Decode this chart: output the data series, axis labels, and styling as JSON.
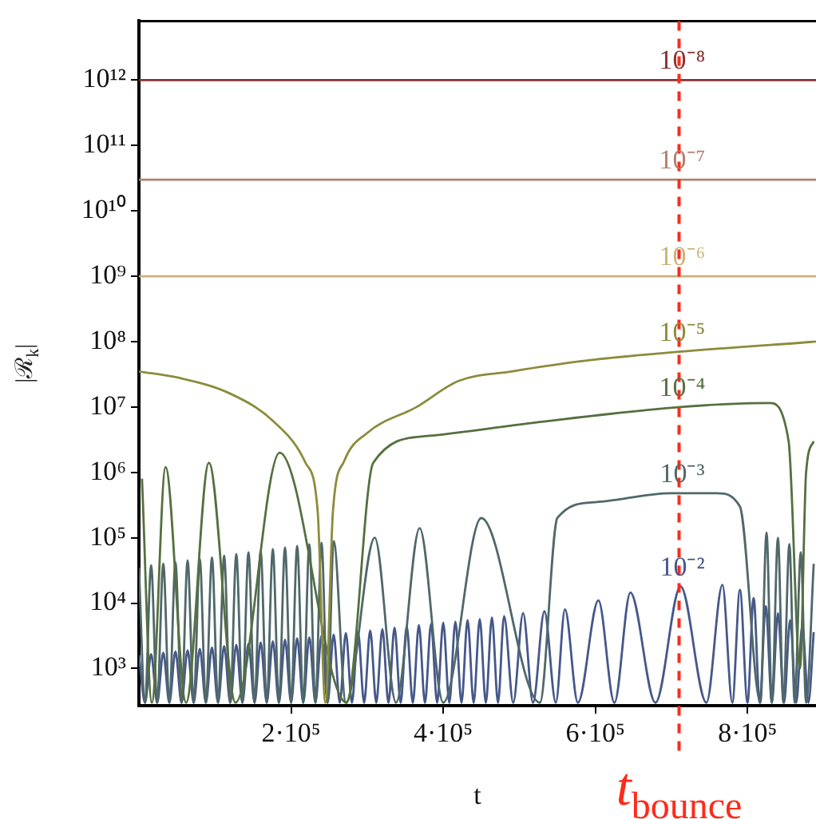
{
  "chart_data": {
    "type": "line",
    "xlabel": "t",
    "ylabel": "|ℛ$_{k}$|",
    "log": true,
    "marker": "none",
    "xlim": [
      0,
      890000
    ],
    "ylim": [
      270,
      8000000000000
    ],
    "xticks": [
      {
        "value": 200000,
        "label": "2·10⁵"
      },
      {
        "value": 400000,
        "label": "4·10⁵"
      },
      {
        "value": 600000,
        "label": "6·10⁵"
      },
      {
        "value": 800000,
        "label": "8·10⁵"
      }
    ],
    "yticks": [
      {
        "value": 1000,
        "label": "10³"
      },
      {
        "value": 10000,
        "label": "10⁴"
      },
      {
        "value": 100000,
        "label": "10⁵"
      },
      {
        "value": 1000000,
        "label": "10⁶"
      },
      {
        "value": 10000000,
        "label": "10⁷"
      },
      {
        "value": 100000000,
        "label": "10⁸"
      },
      {
        "value": 1000000000,
        "label": "10⁹"
      },
      {
        "value": 10000000000,
        "label": "10¹⁰"
      },
      {
        "value": 100000000000,
        "label": "10¹¹"
      },
      {
        "value": 1000000000000,
        "label": "10¹²"
      }
    ],
    "ref_lines": [
      {
        "axis": "x",
        "value": 710000,
        "label": "t$_{bounce}$",
        "color": "#ff2a1a",
        "line_style": "dashed"
      }
    ],
    "series": [
      {
        "name": "10⁻⁸",
        "color": "#8b3030",
        "x": [
          0,
          710000,
          890000
        ],
        "values": [
          1000000000000,
          1000000000000,
          1000000000000
        ]
      },
      {
        "name": "10⁻⁷",
        "color": "#b08070",
        "x": [
          0,
          710000,
          890000
        ],
        "values": [
          30000000000,
          30000000000,
          30000000000
        ]
      },
      {
        "name": "10⁻⁶",
        "color": "#c8b478",
        "x": [
          0,
          710000,
          890000
        ],
        "values": [
          1000000000,
          1000000000,
          1000000000
        ]
      },
      {
        "name": "10⁻⁵",
        "color": "#8c8c3c",
        "x": [
          0,
          52000,
          120000,
          177000,
          219000,
          235000,
          245000,
          255000,
          270000,
          300000,
          365000,
          420000,
          490000,
          580000,
          710000,
          890000
        ],
        "values": [
          35000000,
          28000000,
          16000000,
          6000000,
          1400000,
          250000,
          300,
          250000,
          1500000,
          4000000,
          10000000,
          25000000,
          35000000,
          50000000,
          70000000,
          100000000
        ]
      },
      {
        "name": "10⁻⁴",
        "color": "#55703f",
        "x": [
          4000,
          17000,
          35000,
          62000,
          92000,
          127000,
          185000,
          273000,
          308000,
          379000,
          517000,
          712000,
          829000,
          854000,
          869000,
          877000,
          887000
        ],
        "values": [
          800000,
          300,
          1200000,
          300,
          1400000,
          300,
          2000000,
          300,
          1400000,
          3600000,
          5700000,
          10000000,
          11500000,
          3000000,
          1000,
          1000000,
          3000000
        ]
      },
      {
        "name": "10⁻³",
        "color": "#50686a",
        "x": [
          0,
          8000,
          16000,
          24000,
          32000,
          40000,
          48000,
          56000,
          64000,
          72000,
          80000,
          88000,
          96000,
          104000,
          112000,
          120000,
          128000,
          136000,
          144000,
          152000,
          160000,
          168000,
          176000,
          184000,
          192000,
          200000,
          208000,
          216000,
          224000,
          232000,
          240000,
          248000,
          256000,
          272000,
          310000,
          338000,
          369000,
          400000,
          450000,
          527000,
          550000,
          600000,
          700000,
          760000,
          790000,
          817000,
          825000,
          832000,
          840000,
          847000,
          855000,
          862000,
          870000,
          877000,
          887000
        ],
        "values": [
          35000,
          300,
          38000,
          300,
          40000,
          300,
          42000,
          300,
          45000,
          300,
          47000,
          300,
          50000,
          300,
          53000,
          300,
          56000,
          300,
          60000,
          300,
          63000,
          300,
          67000,
          300,
          71000,
          300,
          75000,
          300,
          79000,
          300,
          84000,
          300,
          89000,
          300,
          100000,
          300,
          140000,
          300,
          200000,
          300,
          200000,
          350000,
          480000,
          480000,
          300000,
          300,
          120000,
          300,
          100000,
          300,
          80000,
          300,
          60000,
          300,
          40000
        ]
      },
      {
        "name": "10⁻²",
        "color": "#46588a",
        "x": [
          0,
          8000,
          16000,
          24000,
          32000,
          40000,
          48000,
          56000,
          64000,
          72000,
          80000,
          88000,
          96000,
          104000,
          112000,
          120000,
          128000,
          136000,
          144000,
          152000,
          160000,
          168000,
          176000,
          184000,
          192000,
          200000,
          208000,
          216000,
          224000,
          232000,
          240000,
          248000,
          256000,
          264000,
          272000,
          280000,
          288000,
          296000,
          304000,
          312000,
          320000,
          328000,
          336000,
          344000,
          352000,
          360000,
          368000,
          376000,
          384000,
          392000,
          400000,
          408000,
          416000,
          424000,
          432000,
          440000,
          448000,
          456000,
          464000,
          472000,
          480000,
          492000,
          505000,
          518000,
          533000,
          548000,
          560000,
          577000,
          604000,
          625000,
          646000,
          679000,
          712000,
          746000,
          767000,
          780000,
          790000,
          800000,
          808000,
          816000,
          824000,
          832000,
          840000,
          848000,
          856000,
          864000,
          872000,
          880000,
          887000
        ],
        "values": [
          1600,
          300,
          1660,
          300,
          1740,
          300,
          1820,
          300,
          1900,
          300,
          2000,
          300,
          2100,
          300,
          2200,
          300,
          2300,
          300,
          2400,
          300,
          2500,
          300,
          2600,
          300,
          2750,
          300,
          2900,
          300,
          3000,
          300,
          3200,
          300,
          3300,
          300,
          3500,
          300,
          3600,
          300,
          3800,
          300,
          4000,
          300,
          4200,
          300,
          4400,
          300,
          4600,
          300,
          4800,
          300,
          5000,
          300,
          5200,
          300,
          5500,
          300,
          5700,
          300,
          6000,
          300,
          6300,
          300,
          7000,
          300,
          7500,
          300,
          8000,
          300,
          11000,
          300,
          14500,
          300,
          18000,
          300,
          19000,
          300,
          16000,
          300,
          12000,
          300,
          9000,
          300,
          7000,
          300,
          5500,
          300,
          4500,
          300,
          3600
        ]
      }
    ]
  }
}
